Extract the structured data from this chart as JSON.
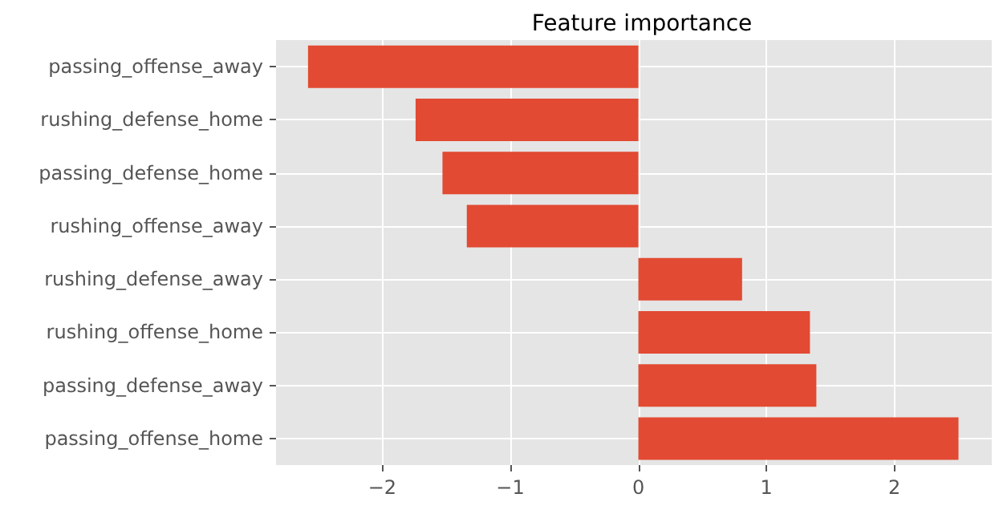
{
  "chart_data": {
    "type": "bar",
    "orientation": "horizontal",
    "title": "Feature importance",
    "categories": [
      "passing_offense_away",
      "rushing_defense_home",
      "passing_defense_home",
      "rushing_offense_away",
      "rushing_defense_away",
      "rushing_offense_home",
      "passing_defense_away",
      "passing_offense_home"
    ],
    "values": [
      -2.58,
      -1.74,
      -1.53,
      -1.34,
      0.81,
      1.34,
      1.39,
      2.5
    ],
    "color": "#e24a33",
    "xlim": [
      -2.83,
      2.76
    ],
    "xticks": [
      -2,
      -1,
      0,
      1,
      2
    ],
    "grid": true
  }
}
